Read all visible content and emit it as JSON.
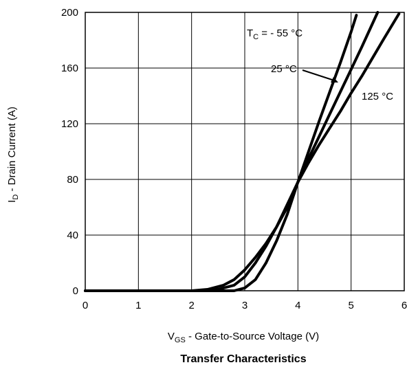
{
  "chart_data": {
    "type": "line",
    "title": "Transfer Characteristics",
    "xlabel": {
      "main": "V",
      "sub": "GS",
      "rest": " - Gate-to-Source Voltage (V)"
    },
    "ylabel": {
      "main": "I",
      "sub": "D",
      "rest": " - Drain Current (A)"
    },
    "xlim": [
      0,
      6
    ],
    "ylim": [
      0,
      200
    ],
    "xticks": [
      "0",
      "1",
      "2",
      "3",
      "4",
      "5",
      "6"
    ],
    "yticks": [
      "0",
      "40",
      "80",
      "120",
      "160",
      "200"
    ],
    "grid": true,
    "series": [
      {
        "name": "T_C = - 55 °C",
        "x": [
          0,
          2.0,
          2.5,
          2.8,
          3.0,
          3.2,
          3.4,
          3.6,
          3.8,
          4.0,
          4.2,
          4.4,
          4.6,
          4.8,
          5.0,
          5.1
        ],
        "y": [
          0,
          0,
          0,
          0,
          2,
          8,
          20,
          36,
          55,
          78,
          100,
          122,
          143,
          164,
          186,
          198
        ]
      },
      {
        "name": "25 °C",
        "x": [
          0,
          2.2,
          2.5,
          2.8,
          3.0,
          3.2,
          3.4,
          3.6,
          3.8,
          4.0,
          4.2,
          4.4,
          4.6,
          4.8,
          5.0,
          5.2,
          5.5
        ],
        "y": [
          0,
          0,
          1,
          4,
          10,
          20,
          32,
          46,
          62,
          78,
          95,
          111,
          127,
          143,
          159,
          175,
          200
        ]
      },
      {
        "name": "125 °C",
        "x": [
          0,
          2.0,
          2.3,
          2.6,
          2.8,
          3.0,
          3.2,
          3.4,
          3.6,
          3.8,
          4.0,
          4.2,
          4.4,
          4.6,
          4.8,
          5.0,
          5.2,
          5.4,
          5.6,
          5.9
        ],
        "y": [
          0,
          0,
          1,
          4,
          8,
          15,
          24,
          34,
          46,
          60,
          78,
          92,
          105,
          117,
          129,
          142,
          154,
          167,
          180,
          199
        ]
      }
    ],
    "annotations": [
      {
        "main": "T",
        "sub": "C",
        "rest": " = - 55 °C"
      },
      {
        "text": "25 °C"
      },
      {
        "text": "125 °C"
      }
    ]
  }
}
